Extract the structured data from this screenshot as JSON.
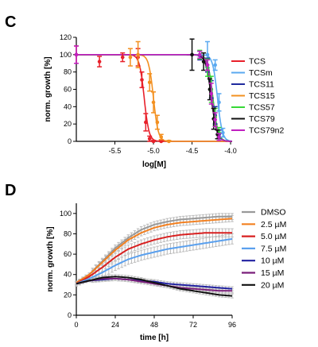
{
  "panels": {
    "c_letter": "C",
    "d_letter": "D"
  },
  "chart_data": [
    {
      "type": "line",
      "subtype": "dose-response",
      "xlabel": "log[M]",
      "ylabel": "norm. growth [%]",
      "xlim": [
        -6.0,
        -3.98
      ],
      "ylim": [
        0,
        120
      ],
      "xticks": [
        -5.5,
        -5.0,
        -4.5,
        -4.0
      ],
      "xtick_labels": [
        "-5.5",
        "-5.0",
        "-4.5",
        "-4.0"
      ],
      "yticks": [
        0,
        20,
        40,
        60,
        80,
        100,
        120
      ],
      "legend_position": "right",
      "series": [
        {
          "name": "TCS",
          "color": "#e8202a",
          "ic50": -5.12,
          "hill": 14,
          "points": [
            {
              "x": -6.0,
              "y": 100,
              "err": 10
            },
            {
              "x": -5.7,
              "y": 92,
              "err": 6
            },
            {
              "x": -5.4,
              "y": 97,
              "err": 5
            },
            {
              "x": -5.2,
              "y": 97,
              "err": 10
            },
            {
              "x": -5.15,
              "y": 71,
              "err": 9
            },
            {
              "x": -5.1,
              "y": 22,
              "err": 10
            },
            {
              "x": -5.05,
              "y": 3,
              "err": 3
            },
            {
              "x": -5.0,
              "y": 0,
              "err": 1
            },
            {
              "x": -4.9,
              "y": 0,
              "err": 1
            }
          ]
        },
        {
          "name": "TCSm",
          "color": "#5aa9f0",
          "ic50": -4.17,
          "hill": 14,
          "points": [
            {
              "x": -4.3,
              "y": 100,
              "err": 15
            },
            {
              "x": -4.2,
              "y": 88,
              "err": 6
            },
            {
              "x": -4.15,
              "y": 45,
              "err": 10
            },
            {
              "x": -4.1,
              "y": 10,
              "err": 5
            }
          ]
        },
        {
          "name": "TCS11",
          "color": "#1f2a9e",
          "ic50": -4.23,
          "hill": 13,
          "points": [
            {
              "x": -4.4,
              "y": 99,
              "err": 5
            },
            {
              "x": -4.3,
              "y": 88,
              "err": 8
            },
            {
              "x": -4.25,
              "y": 60,
              "err": 10
            },
            {
              "x": -4.2,
              "y": 30,
              "err": 10
            },
            {
              "x": -4.15,
              "y": 8,
              "err": 5
            }
          ]
        },
        {
          "name": "TCS15",
          "color": "#f39020",
          "ic50": -5.0,
          "hill": 14,
          "points": [
            {
              "x": -5.3,
              "y": 97,
              "err": 10
            },
            {
              "x": -5.2,
              "y": 100,
              "err": 15
            },
            {
              "x": -5.05,
              "y": 68,
              "err": 10
            },
            {
              "x": -5.0,
              "y": 45,
              "err": 12
            },
            {
              "x": -4.95,
              "y": 22,
              "err": 8
            },
            {
              "x": -4.9,
              "y": 5,
              "err": 3
            },
            {
              "x": -4.8,
              "y": 0,
              "err": 1
            }
          ]
        },
        {
          "name": "TCS57",
          "color": "#36d936",
          "ic50": -4.23,
          "hill": 13,
          "points": [
            {
              "x": -4.4,
              "y": 100,
              "err": 5
            },
            {
              "x": -4.3,
              "y": 85,
              "err": 10
            },
            {
              "x": -4.25,
              "y": 60,
              "err": 15
            },
            {
              "x": -4.2,
              "y": 28,
              "err": 10
            },
            {
              "x": -4.15,
              "y": 10,
              "err": 6
            }
          ]
        },
        {
          "name": "TCS79",
          "color": "#111111",
          "ic50": -4.25,
          "hill": 12,
          "points": [
            {
              "x": -4.5,
              "y": 100,
              "err": 18
            },
            {
              "x": -4.35,
              "y": 92,
              "err": 10
            },
            {
              "x": -4.27,
              "y": 60,
              "err": 12
            },
            {
              "x": -4.22,
              "y": 26,
              "err": 12
            },
            {
              "x": -4.17,
              "y": 8,
              "err": 5
            }
          ]
        },
        {
          "name": "TCS79n2",
          "color": "#c01fc0",
          "ic50": -4.24,
          "hill": 13,
          "points": [
            {
              "x": -6.0,
              "y": 100,
              "err": 10
            },
            {
              "x": -4.4,
              "y": 100,
              "err": 4
            },
            {
              "x": -4.3,
              "y": 88,
              "err": 6
            },
            {
              "x": -4.25,
              "y": 55,
              "err": 12
            },
            {
              "x": -4.2,
              "y": 25,
              "err": 8
            },
            {
              "x": -4.15,
              "y": 5,
              "err": 4
            }
          ]
        }
      ]
    },
    {
      "type": "line",
      "xlabel": "time [h]",
      "ylabel": "norm. growth [%]",
      "xlim": [
        0,
        96
      ],
      "ylim": [
        0,
        110
      ],
      "xticks": [
        0,
        24,
        48,
        72,
        96
      ],
      "yticks": [
        0,
        20,
        40,
        60,
        80,
        100
      ],
      "legend_position": "right",
      "error_color": "#bbbbbb",
      "series": [
        {
          "name": "DMSO",
          "color": "#999999",
          "x": [
            0,
            8,
            16,
            24,
            32,
            40,
            48,
            56,
            64,
            72,
            80,
            88,
            96
          ],
          "y": [
            32,
            40,
            53,
            66,
            76,
            84,
            89,
            92,
            94,
            95,
            96,
            97,
            97
          ],
          "err": 3
        },
        {
          "name": "2.5 µM",
          "color": "#f38020",
          "x": [
            0,
            8,
            16,
            24,
            32,
            40,
            48,
            56,
            64,
            72,
            80,
            88,
            96
          ],
          "y": [
            32,
            40,
            52,
            64,
            74,
            81,
            86,
            89,
            91,
            92,
            93,
            94,
            95
          ],
          "err": 3
        },
        {
          "name": "5.0 µM",
          "color": "#d82020",
          "x": [
            0,
            8,
            16,
            24,
            32,
            40,
            48,
            56,
            64,
            72,
            80,
            88,
            96
          ],
          "y": [
            31,
            38,
            47,
            57,
            65,
            70,
            74,
            77,
            79,
            80,
            81,
            81,
            81
          ],
          "err": 4
        },
        {
          "name": "7.5 µM",
          "color": "#5aa0ee",
          "x": [
            0,
            8,
            16,
            24,
            32,
            40,
            48,
            56,
            64,
            72,
            80,
            88,
            96
          ],
          "y": [
            31,
            36,
            42,
            49,
            55,
            59,
            62,
            65,
            67,
            69,
            71,
            73,
            75
          ],
          "err": 5
        },
        {
          "name": "10 µM",
          "color": "#2020a0",
          "x": [
            0,
            8,
            16,
            24,
            32,
            40,
            48,
            56,
            64,
            72,
            80,
            88,
            96
          ],
          "y": [
            31,
            34,
            35,
            36,
            35,
            34,
            33,
            31,
            30,
            29,
            28,
            27,
            26
          ],
          "err": 2
        },
        {
          "name": "15 µM",
          "color": "#7a1f7a",
          "x": [
            0,
            8,
            16,
            24,
            32,
            40,
            48,
            56,
            64,
            72,
            80,
            88,
            96
          ],
          "y": [
            31,
            34,
            36,
            36,
            35,
            33,
            31,
            29,
            27,
            26,
            25,
            24,
            24
          ],
          "err": 2
        },
        {
          "name": "20 µM",
          "color": "#111111",
          "x": [
            0,
            8,
            16,
            24,
            32,
            40,
            48,
            56,
            64,
            72,
            80,
            88,
            96
          ],
          "y": [
            31,
            34,
            37,
            38,
            37,
            35,
            32,
            29,
            26,
            24,
            22,
            20,
            19
          ],
          "err": 2
        }
      ]
    }
  ]
}
